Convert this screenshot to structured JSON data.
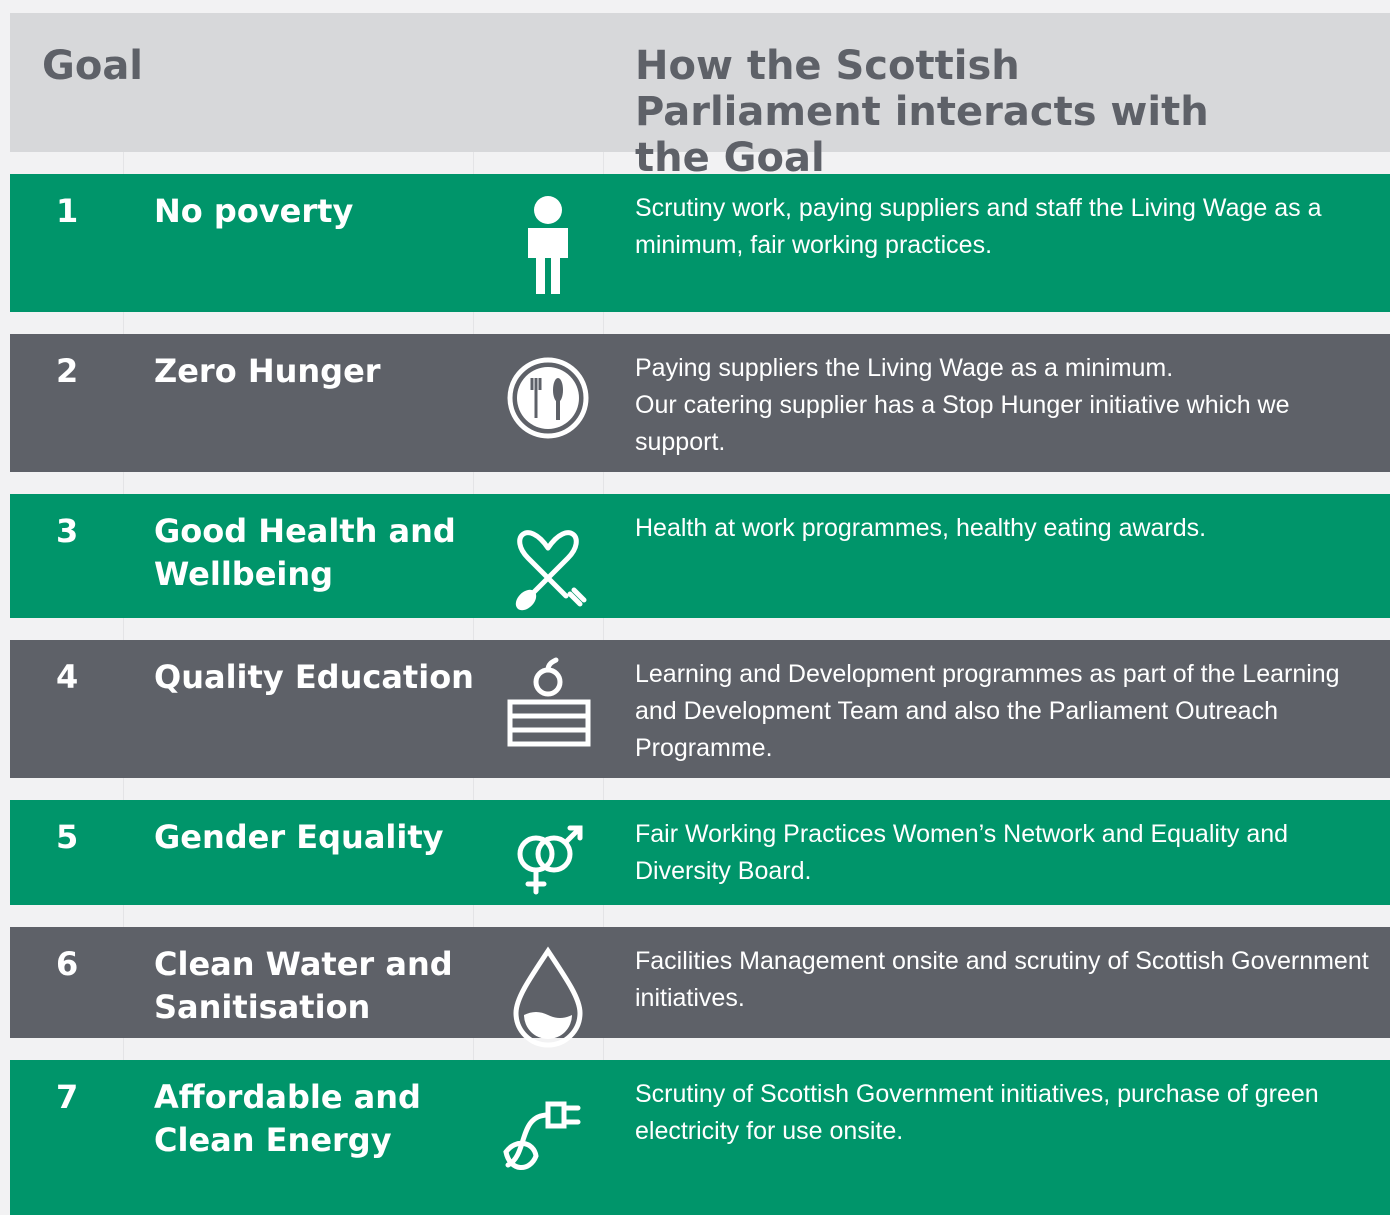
{
  "header": {
    "goal": "Goal",
    "interaction": "How the Scottish Parliament interacts with the Goal"
  },
  "rows": [
    {
      "number": 1,
      "name": "No poverty",
      "description": [
        "Scrutiny work, paying suppliers and staff the Living Wage as a minimum, fair working practices."
      ]
    },
    {
      "number": 2,
      "name": "Zero Hunger",
      "description": [
        "Paying suppliers the Living Wage as a minimum.",
        "Our catering supplier has a Stop Hunger initiative which we support."
      ]
    },
    {
      "number": 3,
      "name": "Good Health and Wellbeing",
      "description": [
        "Health at work programmes, healthy eating awards."
      ]
    },
    {
      "number": 4,
      "name": "Quality Education",
      "description": [
        "Learning and Development programmes as part of the Learning and Development Team and also the Parliament Outreach Programme."
      ]
    },
    {
      "number": 5,
      "name": "Gender Equality",
      "description": [
        "Fair Working Practices Women’s Network and Equality and Diversity Board."
      ]
    },
    {
      "number": 6,
      "name": "Clean Water and Sanitisation",
      "description": [
        "Facilities Management onsite and scrutiny of Scottish Government initiatives."
      ]
    },
    {
      "number": 7,
      "name": "Affordable and Clean Energy",
      "description": [
        "Scrutiny of Scottish Government initiatives, purchase of green electricity for use onsite."
      ]
    }
  ]
}
